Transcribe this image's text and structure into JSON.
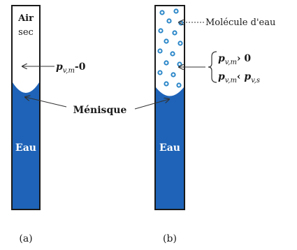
{
  "tube_a": {
    "top_label_line1": "Air",
    "top_label_line2": "sec",
    "water_label": "Eau",
    "pressure_label": {
      "p": "p",
      "sub": "v,m",
      "rest": "-0"
    },
    "caption": "(a)"
  },
  "tube_b": {
    "molecule_label": "Molécule d'eau",
    "water_label": "Eau",
    "condition_1": {
      "p": "p",
      "sub": "v,m",
      "rest": "› 0"
    },
    "condition_2": {
      "p": "p",
      "sub": "v,m",
      "rest": "‹ ",
      "p2": "p",
      "sub2": "v,s"
    },
    "caption": "(b)"
  },
  "shared": {
    "meniscus_label": "Ménisque"
  },
  "colors": {
    "water": "#1e63b8",
    "outline": "#1a1a1a",
    "molecule": "#2a86c8",
    "arrow": "#333333"
  }
}
